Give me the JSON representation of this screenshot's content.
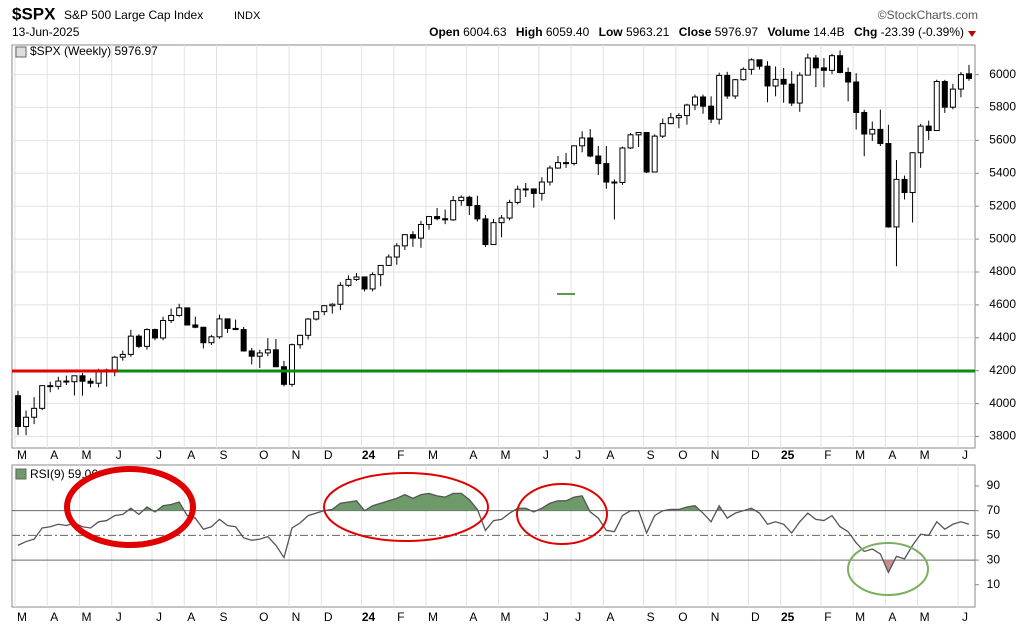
{
  "header": {
    "symbol": "$SPX",
    "name": "S&P 500 Large Cap Index",
    "exchange": "INDX",
    "date": "13-Jun-2025",
    "credit": "©StockCharts.com",
    "open_label": "Open",
    "open": "6004.63",
    "high_label": "High",
    "high": "6059.40",
    "low_label": "Low",
    "low": "5963.21",
    "close_label": "Close",
    "close": "5976.97",
    "volume_label": "Volume",
    "volume": "14.4B",
    "chg_label": "Chg",
    "chg": "-23.39 (-0.39%)"
  },
  "chart_data": [
    {
      "type": "candlestick",
      "legend": "$SPX (Weekly) 5976.97",
      "up_color": "#ffffff",
      "down_color": "#000000",
      "grid": true,
      "ylim": [
        3730,
        6180
      ],
      "yticks": [
        3800,
        4000,
        4200,
        4400,
        4600,
        4800,
        5000,
        5200,
        5400,
        5600,
        5800,
        6000
      ],
      "categories": [
        "M",
        null,
        null,
        null,
        "A",
        null,
        null,
        null,
        "M",
        null,
        null,
        null,
        "J",
        null,
        null,
        null,
        null,
        "J",
        null,
        null,
        null,
        "A",
        null,
        null,
        null,
        "S",
        null,
        null,
        null,
        null,
        "O",
        null,
        null,
        null,
        "N",
        null,
        null,
        null,
        "D",
        null,
        null,
        null,
        null,
        "24",
        null,
        null,
        null,
        "F",
        null,
        null,
        null,
        "M",
        null,
        null,
        null,
        null,
        "A",
        null,
        null,
        null,
        "M",
        null,
        null,
        null,
        null,
        "J",
        null,
        null,
        null,
        "J",
        null,
        null,
        null,
        "A",
        null,
        null,
        null,
        null,
        "S",
        null,
        null,
        null,
        "O",
        null,
        null,
        null,
        "N",
        null,
        null,
        null,
        null,
        "D",
        null,
        null,
        null,
        "25",
        null,
        null,
        null,
        null,
        "F",
        null,
        null,
        null,
        "M",
        null,
        null,
        null,
        "A",
        null,
        null,
        null,
        "M",
        null,
        null,
        null,
        null,
        "J",
        null
      ],
      "open": [
        4048,
        3861,
        3917,
        3971,
        4109,
        4105,
        4137,
        4133,
        4169,
        4136,
        4124,
        4192,
        4205,
        4282,
        4299,
        4410,
        4348,
        4450,
        4399,
        4505,
        4536,
        4582,
        4478,
        4464,
        4370,
        4406,
        4515,
        4457,
        4450,
        4320,
        4288,
        4308,
        4327,
        4224,
        4117,
        4358,
        4415,
        4514,
        4559,
        4595,
        4604,
        4719,
        4755,
        4770,
        4697,
        4784,
        4840,
        4891,
        4959,
        5027,
        5006,
        5089,
        5137,
        5124,
        5117,
        5234,
        5254,
        5204,
        5123,
        4967,
        5100,
        5128,
        5223,
        5303,
        5305,
        5278,
        5347,
        5432,
        5465,
        5460,
        5567,
        5615,
        5505,
        5459,
        5347,
        5344,
        5554,
        5634,
        5648,
        5408,
        5626,
        5702,
        5738,
        5751,
        5815,
        5864,
        5808,
        5729,
        5995,
        5870,
        5969,
        6032,
        6090,
        6051,
        5931,
        5971,
        5942,
        5827,
        5997,
        6101,
        6041,
        6026,
        6115,
        6013,
        5955,
        5770,
        5639,
        5667,
        5581,
        5074,
        5363,
        5283,
        5525,
        5687,
        5660,
        5958,
        5802,
        5912,
        6005
      ],
      "high": [
        4078,
        3958,
        4039,
        4110,
        4133,
        4163,
        4170,
        4170,
        4186,
        4154,
        4212,
        4212,
        4290,
        4322,
        4448,
        4421,
        4458,
        4456,
        4528,
        4578,
        4607,
        4584,
        4528,
        4466,
        4418,
        4541,
        4514,
        4511,
        4466,
        4338,
        4327,
        4398,
        4393,
        4259,
        4365,
        4418,
        4521,
        4560,
        4598,
        4610,
        4738,
        4779,
        4794,
        4750,
        4798,
        4842,
        4907,
        4976,
        5030,
        5048,
        5111,
        5141,
        5189,
        5180,
        5262,
        5265,
        5264,
        5263,
        5146,
        5123,
        5146,
        5239,
        5325,
        5341,
        5306,
        5376,
        5447,
        5505,
        5524,
        5570,
        5655,
        5669,
        5566,
        5566,
        5363,
        5562,
        5644,
        5651,
        5651,
        5637,
        5733,
        5767,
        5765,
        5823,
        5878,
        5878,
        5868,
        6012,
        6017,
        5973,
        6044,
        6099,
        6085,
        6082,
        6049,
        6040,
        6021,
        6014,
        6128,
        6119,
        6101,
        6127,
        6147,
        6043,
        6009,
        5786,
        5715,
        5787,
        5695,
        5481,
        5386,
        5528,
        5700,
        5720,
        5969,
        5968,
        5944,
        6016,
        6059
      ],
      "low": [
        3809,
        3808,
        3875,
        3960,
        4069,
        4086,
        4113,
        4049,
        4048,
        4099,
        4099,
        4103,
        4166,
        4261,
        4284,
        4337,
        4328,
        4385,
        4385,
        4490,
        4528,
        4474,
        4458,
        4335,
        4356,
        4394,
        4430,
        4448,
        4316,
        4238,
        4216,
        4288,
        4223,
        4104,
        4103,
        4334,
        4389,
        4505,
        4537,
        4547,
        4568,
        4710,
        4745,
        4682,
        4682,
        4714,
        4837,
        4845,
        4934,
        4953,
        4947,
        5057,
        5114,
        5091,
        5111,
        5203,
        5146,
        5107,
        4953,
        4968,
        5011,
        5114,
        5211,
        5256,
        5191,
        5234,
        5326,
        5427,
        5433,
        5447,
        5528,
        5497,
        5390,
        5306,
        5119,
        5330,
        5548,
        5560,
        5402,
        5406,
        5615,
        5698,
        5674,
        5696,
        5784,
        5762,
        5705,
        5697,
        5853,
        5853,
        5963,
        6000,
        6031,
        5832,
        5868,
        5829,
        5809,
        5774,
        5997,
        5924,
        5923,
        6003,
        6008,
        5837,
        5666,
        5504,
        5597,
        5566,
        5069,
        4835,
        5241,
        5101,
        5433,
        5603,
        5658,
        5767,
        5789,
        5862,
        5963
      ],
      "close": [
        3861,
        3917,
        3971,
        4109,
        4105,
        4137,
        4133,
        4169,
        4136,
        4124,
        4192,
        4205,
        4282,
        4299,
        4410,
        4348,
        4450,
        4399,
        4505,
        4536,
        4582,
        4478,
        4464,
        4370,
        4406,
        4515,
        4457,
        4450,
        4320,
        4288,
        4308,
        4327,
        4224,
        4117,
        4358,
        4415,
        4514,
        4559,
        4595,
        4604,
        4719,
        4755,
        4770,
        4697,
        4784,
        4840,
        4891,
        4959,
        5027,
        5006,
        5089,
        5137,
        5124,
        5117,
        5234,
        5254,
        5204,
        5123,
        4967,
        5100,
        5128,
        5223,
        5303,
        5305,
        5278,
        5347,
        5432,
        5465,
        5460,
        5567,
        5615,
        5505,
        5459,
        5347,
        5344,
        5554,
        5634,
        5648,
        5408,
        5626,
        5702,
        5738,
        5751,
        5815,
        5864,
        5808,
        5729,
        5995,
        5870,
        5969,
        6032,
        6090,
        6051,
        5931,
        5971,
        5942,
        5827,
        5997,
        6101,
        6041,
        6026,
        6115,
        6013,
        5955,
        5770,
        5639,
        5667,
        5581,
        5074,
        5363,
        5283,
        5525,
        5687,
        5660,
        5958,
        5802,
        5912,
        6000,
        5977
      ]
    },
    {
      "type": "line",
      "legend": "RSI(9) 59.06",
      "color": "#555555",
      "overbought_color": "#6e9a6a",
      "oversold_color": "#c98f8f",
      "ylim": [
        -8,
        107
      ],
      "yticks": [
        10,
        30,
        50,
        70,
        90
      ],
      "bands": [
        30,
        50,
        70
      ],
      "values": [
        42,
        45,
        47,
        56,
        57,
        59,
        58,
        60,
        57,
        56,
        61,
        62,
        66,
        67,
        72,
        67,
        73,
        69,
        74,
        75,
        77,
        66,
        64,
        55,
        57,
        63,
        58,
        57,
        48,
        46,
        47,
        49,
        42,
        32,
        56,
        60,
        66,
        68,
        70,
        71,
        76,
        77,
        78,
        70,
        74,
        76,
        78,
        80,
        83,
        80,
        83,
        84,
        82,
        81,
        84,
        84,
        79,
        71,
        54,
        62,
        63,
        68,
        72,
        72,
        69,
        72,
        76,
        78,
        78,
        81,
        82,
        69,
        64,
        54,
        53,
        66,
        70,
        70,
        52,
        66,
        70,
        71,
        71,
        73,
        74,
        68,
        61,
        74,
        64,
        68,
        70,
        72,
        68,
        59,
        61,
        59,
        52,
        61,
        68,
        63,
        62,
        66,
        57,
        53,
        44,
        37,
        39,
        35,
        20,
        33,
        31,
        42,
        51,
        50,
        61,
        55,
        59,
        61,
        59
      ]
    }
  ]
}
